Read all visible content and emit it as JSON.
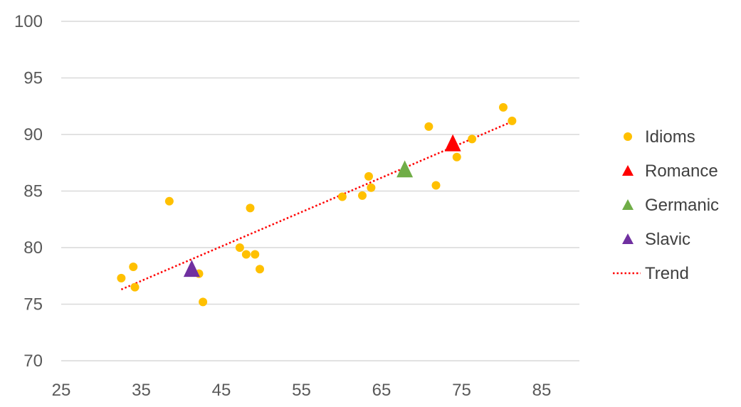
{
  "chart_data": {
    "type": "scatter",
    "title": "",
    "xlabel": "",
    "ylabel": "",
    "xlim": [
      25,
      90
    ],
    "ylim": [
      70,
      100
    ],
    "x_ticks": [
      25,
      35,
      45,
      55,
      65,
      75,
      85
    ],
    "y_ticks": [
      70,
      75,
      80,
      85,
      90,
      95,
      100
    ],
    "grid": "horizontal",
    "legend_position": "right",
    "series": [
      {
        "name": "Idioms",
        "marker": "circle",
        "color": "#FFC000",
        "points": [
          [
            32.5,
            77.3
          ],
          [
            34.0,
            78.3
          ],
          [
            34.2,
            76.5
          ],
          [
            38.5,
            84.1
          ],
          [
            42.2,
            77.7
          ],
          [
            42.7,
            75.2
          ],
          [
            47.3,
            80.0
          ],
          [
            48.1,
            79.4
          ],
          [
            48.6,
            83.5
          ],
          [
            49.2,
            79.4
          ],
          [
            49.8,
            78.1
          ],
          [
            60.1,
            84.5
          ],
          [
            62.6,
            84.6
          ],
          [
            63.4,
            86.3
          ],
          [
            63.7,
            85.3
          ],
          [
            70.9,
            90.7
          ],
          [
            71.8,
            85.5
          ],
          [
            74.4,
            88.0
          ],
          [
            76.3,
            89.6
          ],
          [
            80.2,
            92.4
          ],
          [
            81.3,
            91.2
          ]
        ]
      },
      {
        "name": "Romance",
        "marker": "triangle",
        "color": "#FF0000",
        "points": [
          [
            73.9,
            89.2
          ]
        ]
      },
      {
        "name": "Germanic",
        "marker": "triangle",
        "color": "#70AD47",
        "points": [
          [
            67.9,
            86.9
          ]
        ]
      },
      {
        "name": "Slavic",
        "marker": "triangle",
        "color": "#7030A0",
        "points": [
          [
            41.3,
            78.1
          ]
        ]
      },
      {
        "name": "Trend",
        "marker": "dotted-line",
        "color": "#FF0000",
        "points": [
          [
            32.5,
            76.3
          ],
          [
            81.5,
            91.2
          ]
        ]
      }
    ]
  }
}
